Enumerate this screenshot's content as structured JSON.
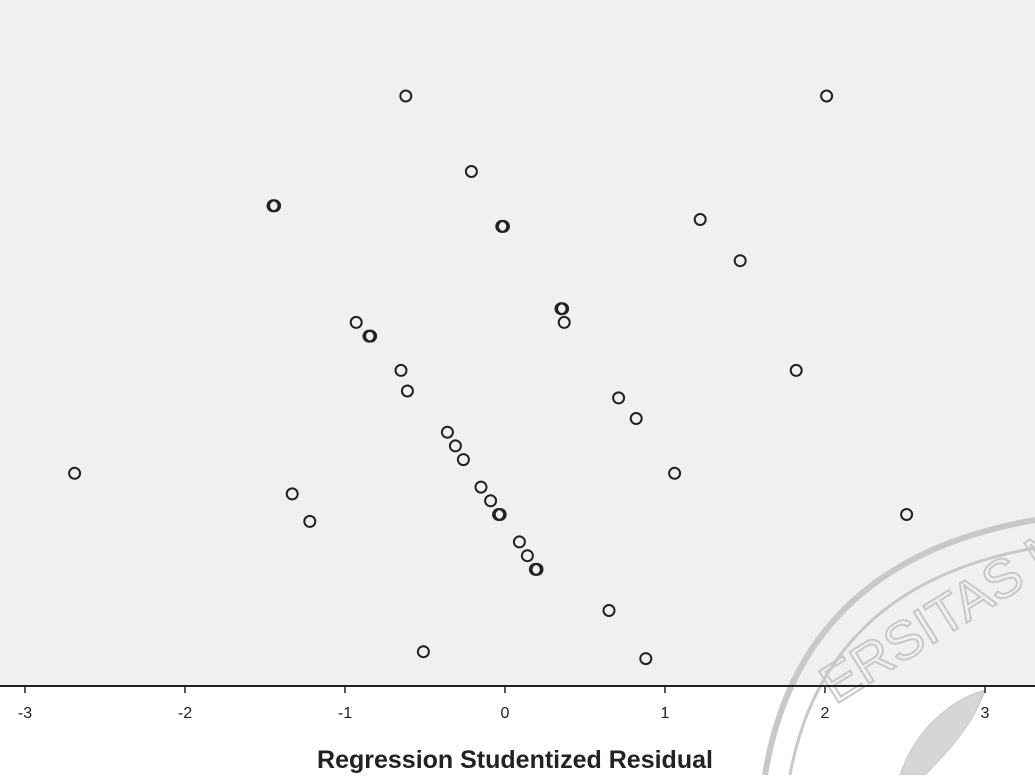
{
  "chart_data": {
    "type": "scatter",
    "title": "",
    "xlabel": "Regression Studentized Residual",
    "ylabel": "",
    "xlim": [
      -3.15,
      3.35
    ],
    "ylim": [
      0,
      1
    ],
    "x_ticks": [
      -3,
      -2,
      -1,
      0,
      1,
      2,
      3
    ],
    "x_tick_labels": [
      "-3",
      "-2",
      "-1",
      "0",
      "1",
      "2",
      "3"
    ],
    "grid": false,
    "legend": "none",
    "marker": "open-circle",
    "series": [
      {
        "points": [
          {
            "x": -0.62,
            "y": 0.86
          },
          {
            "x": 2.01,
            "y": 0.86
          },
          {
            "x": -1.45,
            "y": 0.7
          },
          {
            "x": -1.44,
            "y": 0.7
          },
          {
            "x": -0.21,
            "y": 0.75
          },
          {
            "x": -0.02,
            "y": 0.67
          },
          {
            "x": -0.01,
            "y": 0.67
          },
          {
            "x": 1.22,
            "y": 0.68
          },
          {
            "x": 1.47,
            "y": 0.62
          },
          {
            "x": 0.35,
            "y": 0.55
          },
          {
            "x": 0.36,
            "y": 0.55
          },
          {
            "x": 0.37,
            "y": 0.53
          },
          {
            "x": -0.93,
            "y": 0.53
          },
          {
            "x": -0.84,
            "y": 0.51
          },
          {
            "x": -0.85,
            "y": 0.51
          },
          {
            "x": -0.65,
            "y": 0.46
          },
          {
            "x": -0.61,
            "y": 0.43
          },
          {
            "x": 1.82,
            "y": 0.46
          },
          {
            "x": 0.71,
            "y": 0.42
          },
          {
            "x": 0.82,
            "y": 0.39
          },
          {
            "x": -0.36,
            "y": 0.37
          },
          {
            "x": -0.31,
            "y": 0.35
          },
          {
            "x": -0.26,
            "y": 0.33
          },
          {
            "x": -2.69,
            "y": 0.31
          },
          {
            "x": 1.06,
            "y": 0.31
          },
          {
            "x": -0.15,
            "y": 0.29
          },
          {
            "x": -0.09,
            "y": 0.27
          },
          {
            "x": -0.04,
            "y": 0.25
          },
          {
            "x": -0.03,
            "y": 0.25
          },
          {
            "x": -1.33,
            "y": 0.28
          },
          {
            "x": -1.22,
            "y": 0.24
          },
          {
            "x": 2.51,
            "y": 0.25
          },
          {
            "x": 0.09,
            "y": 0.21
          },
          {
            "x": 0.14,
            "y": 0.19
          },
          {
            "x": 0.19,
            "y": 0.17
          },
          {
            "x": 0.2,
            "y": 0.17
          },
          {
            "x": 0.65,
            "y": 0.11
          },
          {
            "x": -0.51,
            "y": 0.05
          },
          {
            "x": 0.88,
            "y": 0.04
          }
        ]
      }
    ],
    "plot_background": "#f0f0f0",
    "axis_color": "#222222",
    "marker_stroke": "#222222",
    "watermark_color": "#c8c8c8"
  },
  "watermark": {
    "text": "ERSITAS M"
  }
}
